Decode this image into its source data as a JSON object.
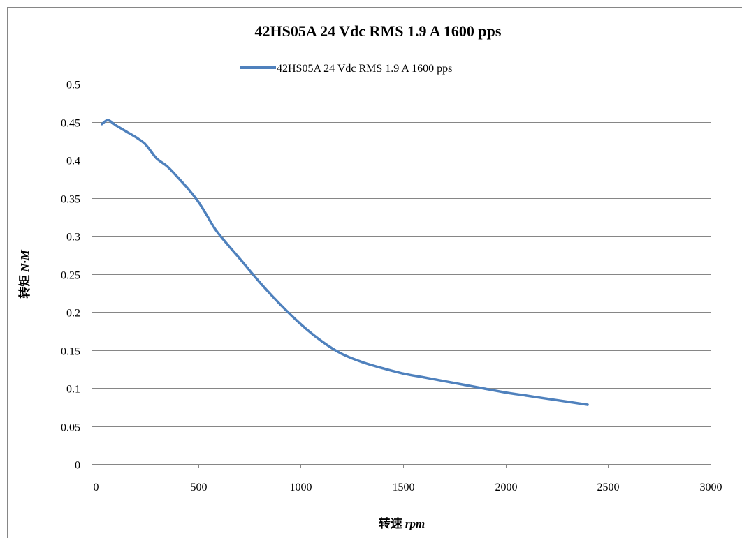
{
  "chart_data": {
    "type": "line",
    "title": "42HS05A  24 Vdc  RMS 1.9 A  1600 pps",
    "xlabel": "转速",
    "xlabel_unit": "rpm",
    "ylabel": "转矩",
    "ylabel_unit": "N·M",
    "xlim": [
      0,
      3000
    ],
    "ylim": [
      0,
      0.5
    ],
    "x_ticks": [
      "0",
      "500",
      "1000",
      "1500",
      "2000",
      "2500",
      "3000"
    ],
    "y_ticks": [
      "0",
      "0.05",
      "0.1",
      "0.15",
      "0.2",
      "0.25",
      "0.3",
      "0.35",
      "0.4",
      "0.45",
      "0.5"
    ],
    "grid": "horizontal",
    "legend_position": "top",
    "series": [
      {
        "name": "42HS05A  24 Vdc  RMS 1.9 A  1600 pps",
        "color": "#4f81bd",
        "x": [
          30,
          60,
          100,
          150,
          200,
          240,
          270,
          300,
          350,
          400,
          450,
          500,
          540,
          580,
          620,
          700,
          800,
          900,
          1000,
          1100,
          1200,
          1300,
          1400,
          1500,
          1600,
          1700,
          1800,
          1900,
          2000,
          2100,
          2200,
          2300,
          2400
        ],
        "y": [
          0.447,
          0.452,
          0.445,
          0.437,
          0.429,
          0.421,
          0.411,
          0.401,
          0.391,
          0.377,
          0.362,
          0.345,
          0.328,
          0.31,
          0.296,
          0.271,
          0.239,
          0.21,
          0.184,
          0.162,
          0.145,
          0.134,
          0.126,
          0.119,
          0.114,
          0.109,
          0.104,
          0.099,
          0.094,
          0.09,
          0.086,
          0.082,
          0.078
        ]
      }
    ]
  }
}
